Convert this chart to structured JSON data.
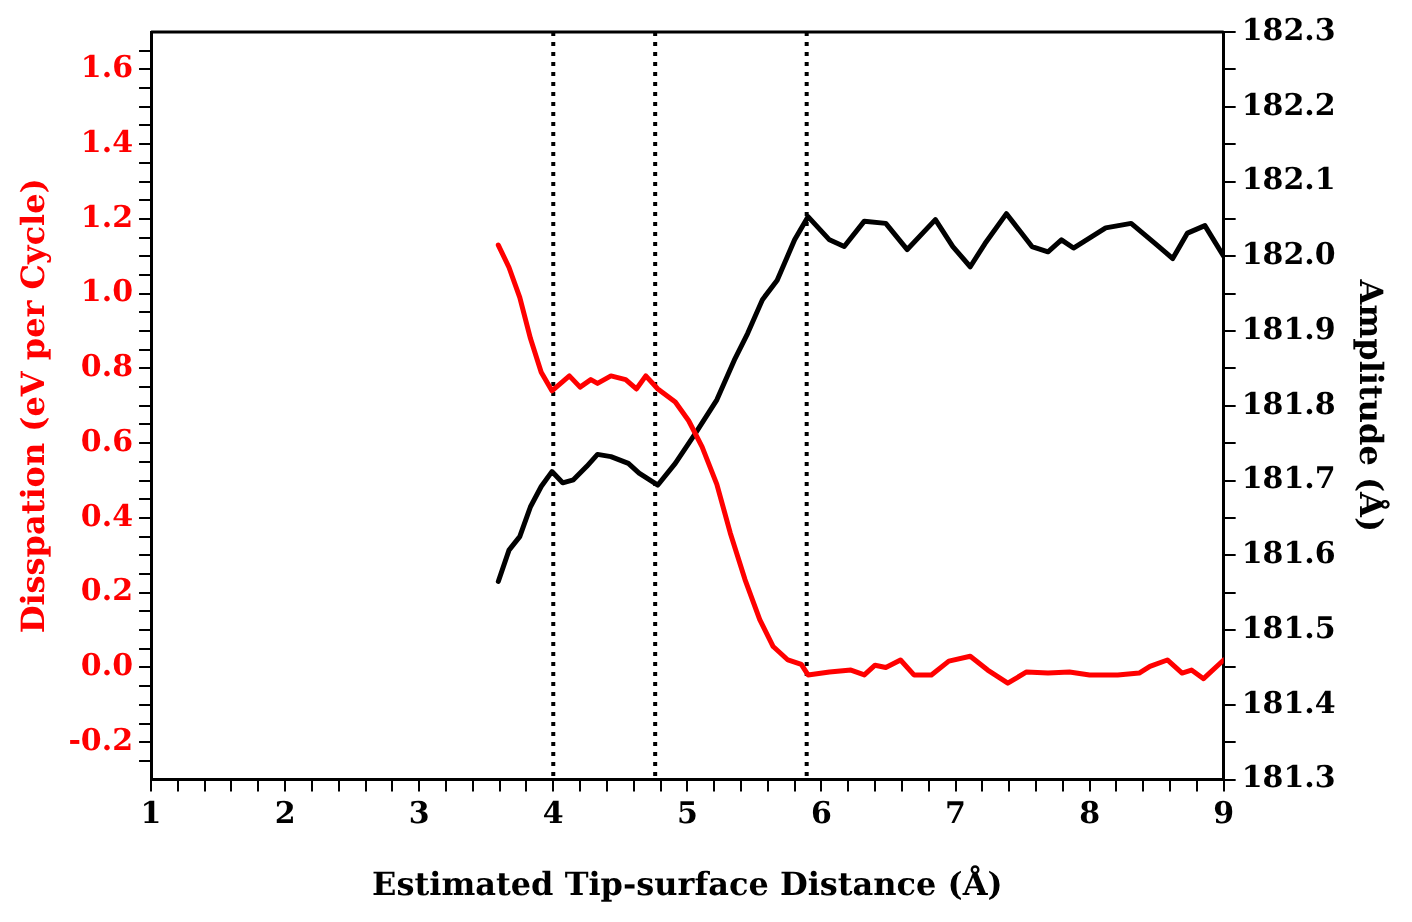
{
  "chart_data": {
    "type": "line",
    "xlabel": "Estimated Tip-surface Distance (Å)",
    "ylabel": "Disspation (eV per Cycle)",
    "y2label": "Amplitude (Å)",
    "xlim": [
      1,
      9
    ],
    "xticks": [
      1,
      {
        "value": 1.2,
        "label": null
      },
      {
        "value": 1.4,
        "label": null
      },
      {
        "value": 1.6,
        "label": null
      },
      {
        "value": 1.8,
        "label": null
      },
      2,
      {
        "value": 2.2,
        "label": null
      },
      {
        "value": 2.4,
        "label": null
      },
      {
        "value": 2.6,
        "label": null
      },
      {
        "value": 2.8,
        "label": null
      },
      3,
      {
        "value": 3.2,
        "label": null
      },
      {
        "value": 3.4,
        "label": null
      },
      {
        "value": 3.6,
        "label": null
      },
      {
        "value": 3.8,
        "label": null
      },
      4,
      {
        "value": 4.2,
        "label": null
      },
      {
        "value": 4.4,
        "label": null
      },
      {
        "value": 4.6,
        "label": null
      },
      {
        "value": 4.8,
        "label": null
      },
      5,
      {
        "value": 5.2,
        "label": null
      },
      {
        "value": 5.4,
        "label": null
      },
      {
        "value": 5.6,
        "label": null
      },
      {
        "value": 5.8,
        "label": null
      },
      6,
      {
        "value": 6.2,
        "label": null
      },
      {
        "value": 6.4,
        "label": null
      },
      {
        "value": 6.6,
        "label": null
      },
      {
        "value": 6.8,
        "label": null
      },
      7,
      {
        "value": 7.2,
        "label": null
      },
      {
        "value": 7.4,
        "label": null
      },
      {
        "value": 7.6,
        "label": null
      },
      {
        "value": 7.8,
        "label": null
      },
      8,
      {
        "value": 8.2,
        "label": null
      },
      {
        "value": 8.4,
        "label": null
      },
      {
        "value": 8.6,
        "label": null
      },
      {
        "value": 8.8,
        "label": null
      },
      9
    ],
    "ylim": [
      -0.3,
      1.7
    ],
    "yticks": [
      {
        "value": -0.25,
        "label": null
      },
      -0.2,
      {
        "value": -0.15,
        "label": null
      },
      {
        "value": -0.1,
        "label": null
      },
      {
        "value": -0.05,
        "label": null
      },
      {
        "value": 0,
        "label": "0.0"
      },
      {
        "value": 0.05,
        "label": null
      },
      {
        "value": 0.1,
        "label": null
      },
      {
        "value": 0.15,
        "label": null
      },
      0.2,
      {
        "value": 0.25,
        "label": null
      },
      {
        "value": 0.3,
        "label": null
      },
      {
        "value": 0.35,
        "label": null
      },
      0.4,
      {
        "value": 0.45,
        "label": null
      },
      {
        "value": 0.5,
        "label": null
      },
      {
        "value": 0.55,
        "label": null
      },
      0.6,
      {
        "value": 0.65,
        "label": null
      },
      {
        "value": 0.7,
        "label": null
      },
      {
        "value": 0.75,
        "label": null
      },
      0.8,
      {
        "value": 0.85,
        "label": null
      },
      {
        "value": 0.9,
        "label": null
      },
      {
        "value": 0.95,
        "label": null
      },
      {
        "value": 1,
        "label": "1.0"
      },
      {
        "value": 1.05,
        "label": null
      },
      {
        "value": 1.1,
        "label": null
      },
      {
        "value": 1.15,
        "label": null
      },
      1.2,
      {
        "value": 1.25,
        "label": null
      },
      {
        "value": 1.3,
        "label": null
      },
      {
        "value": 1.35,
        "label": null
      },
      1.4,
      {
        "value": 1.45,
        "label": null
      },
      {
        "value": 1.5,
        "label": null
      },
      {
        "value": 1.55,
        "label": null
      },
      1.6,
      {
        "value": 1.65,
        "label": null
      }
    ],
    "y2lim": [
      181.3,
      182.3
    ],
    "y2ticks": [
      181.3,
      {
        "value": 181.35,
        "label": null
      },
      181.4,
      {
        "value": 181.45,
        "label": null
      },
      181.5,
      {
        "value": 181.55,
        "label": null
      },
      181.6,
      {
        "value": 181.65,
        "label": null
      },
      181.7,
      {
        "value": 181.75,
        "label": null
      },
      181.8,
      {
        "value": 181.85,
        "label": null
      },
      181.9,
      {
        "value": 181.95,
        "label": null
      },
      {
        "value": 182,
        "label": "182.0"
      },
      {
        "value": 182.05,
        "label": null
      },
      182.1,
      {
        "value": 182.15,
        "label": null
      },
      182.2,
      {
        "value": 182.25,
        "label": null
      },
      182.3
    ],
    "grid": false,
    "legend": false,
    "marker": "none",
    "line_style": "solid",
    "ref_lines": [
      {
        "axis": "x",
        "value": 4.0,
        "color": "#000000",
        "line_style": "dotted"
      },
      {
        "axis": "x",
        "value": 4.76,
        "color": "#000000",
        "line_style": "dotted"
      },
      {
        "axis": "x",
        "value": 5.89,
        "color": "#000000",
        "line_style": "dotted"
      }
    ],
    "series": [
      {
        "color": "#ff0000",
        "x": [
          3.59,
          3.67,
          3.75,
          3.83,
          3.91,
          3.99,
          4.12,
          4.2,
          4.28,
          4.33,
          4.43,
          4.54,
          4.62,
          4.69,
          4.78,
          4.91,
          5.01,
          5.11,
          5.22,
          5.32,
          5.43,
          5.54,
          5.64,
          5.75,
          5.85,
          5.9,
          6.06,
          6.22,
          6.32,
          6.4,
          6.48,
          6.59,
          6.69,
          6.82,
          6.95,
          7.11,
          7.24,
          7.39,
          7.53,
          7.69,
          7.85,
          8.0,
          8.21,
          8.37,
          8.45,
          8.58,
          8.69,
          8.76,
          8.85,
          9.0
        ],
        "values": [
          1.13,
          1.07,
          0.99,
          0.88,
          0.79,
          0.74,
          0.78,
          0.75,
          0.77,
          0.76,
          0.78,
          0.77,
          0.745,
          0.78,
          0.745,
          0.71,
          0.66,
          0.59,
          0.49,
          0.36,
          0.235,
          0.128,
          0.056,
          0.02,
          0.008,
          -0.02,
          -0.012,
          -0.007,
          -0.02,
          0.006,
          0.0,
          0.02,
          -0.02,
          -0.02,
          0.017,
          0.03,
          -0.007,
          -0.042,
          -0.012,
          -0.015,
          -0.012,
          -0.02,
          -0.02,
          -0.015,
          0.003,
          0.02,
          -0.015,
          -0.007,
          -0.03,
          0.02
        ]
      },
      {
        "color": "#000000",
        "axis": "y2",
        "x": [
          3.59,
          3.67,
          3.75,
          3.83,
          3.91,
          3.99,
          4.07,
          4.15,
          4.25,
          4.33,
          4.43,
          4.56,
          4.64,
          4.78,
          4.91,
          5.06,
          5.22,
          5.35,
          5.45,
          5.56,
          5.67,
          5.8,
          5.9,
          6.06,
          6.17,
          6.32,
          6.48,
          6.64,
          6.85,
          6.98,
          7.11,
          7.22,
          7.38,
          7.57,
          7.69,
          7.79,
          7.88,
          7.96,
          8.12,
          8.31,
          8.49,
          8.62,
          8.73,
          8.86,
          9.0
        ],
        "values": [
          181.565,
          181.607,
          181.625,
          181.665,
          181.692,
          181.712,
          181.697,
          181.701,
          181.719,
          181.735,
          181.732,
          181.723,
          181.71,
          181.694,
          181.723,
          181.763,
          181.808,
          181.861,
          181.897,
          181.942,
          181.968,
          182.022,
          182.053,
          182.022,
          182.013,
          182.047,
          182.044,
          182.009,
          182.049,
          182.013,
          181.986,
          182.017,
          182.057,
          182.013,
          182.006,
          182.022,
          182.011,
          182.02,
          182.038,
          182.044,
          182.017,
          181.997,
          182.031,
          182.041,
          182
        ]
      }
    ]
  }
}
